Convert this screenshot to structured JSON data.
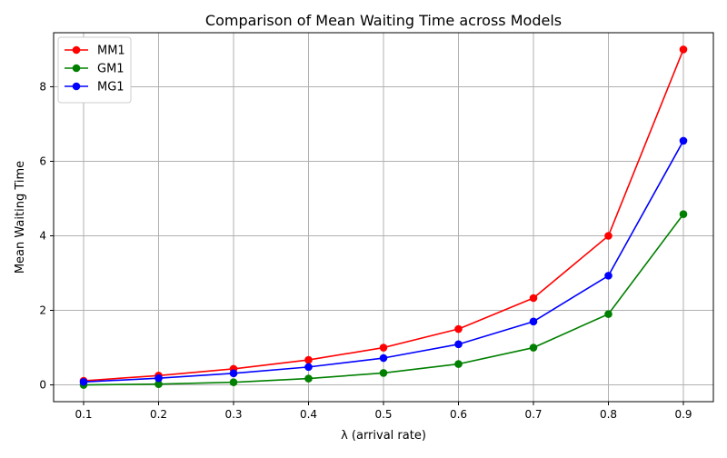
{
  "chart_data": {
    "type": "line",
    "title": "Comparison of Mean Waiting Time across Models",
    "xlabel": "λ (arrival rate)",
    "ylabel": "Mean Waiting Time",
    "x": [
      0.1,
      0.2,
      0.3,
      0.4,
      0.5,
      0.6,
      0.7,
      0.8,
      0.9
    ],
    "x_ticks": [
      "0.1",
      "0.2",
      "0.3",
      "0.4",
      "0.5",
      "0.6",
      "0.7",
      "0.8",
      "0.9"
    ],
    "y_ticks": [
      "0",
      "2",
      "4",
      "6",
      "8"
    ],
    "xlim": [
      0.06,
      0.94
    ],
    "ylim": [
      -0.45,
      9.45
    ],
    "grid": true,
    "legend_position": "upper-left",
    "series": [
      {
        "name": "MM1",
        "color": "#ff0000",
        "values": [
          0.11,
          0.25,
          0.43,
          0.67,
          1.0,
          1.5,
          2.33,
          4.0,
          9.0
        ]
      },
      {
        "name": "GM1",
        "color": "#008000",
        "values": [
          0.0,
          0.02,
          0.07,
          0.17,
          0.32,
          0.56,
          1.0,
          1.9,
          4.58
        ]
      },
      {
        "name": "MG1",
        "color": "#0000ff",
        "values": [
          0.08,
          0.18,
          0.31,
          0.48,
          0.72,
          1.09,
          1.7,
          2.93,
          6.55
        ]
      }
    ]
  }
}
